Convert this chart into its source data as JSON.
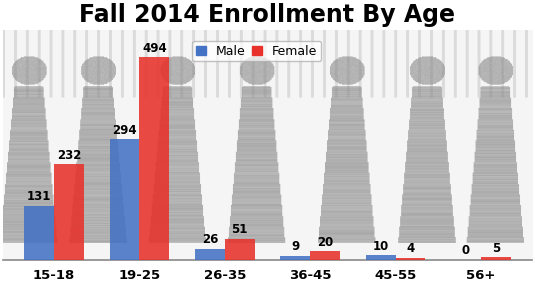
{
  "title": "Fall 2014 Enrollment By Age",
  "categories": [
    "15-18",
    "19-25",
    "26-35",
    "36-45",
    "45-55",
    "56+"
  ],
  "male_values": [
    131,
    294,
    26,
    9,
    10,
    0
  ],
  "female_values": [
    232,
    494,
    51,
    20,
    4,
    5
  ],
  "male_color": "#4472C4",
  "female_color": "#E8312A",
  "bar_width": 0.35,
  "ylim": [
    0,
    560
  ],
  "title_fontsize": 17,
  "label_fontsize": 8.5,
  "tick_fontsize": 9.5,
  "legend_labels": [
    "Male",
    "Female"
  ],
  "legend_fontsize": 9,
  "bar_alpha": 0.88
}
